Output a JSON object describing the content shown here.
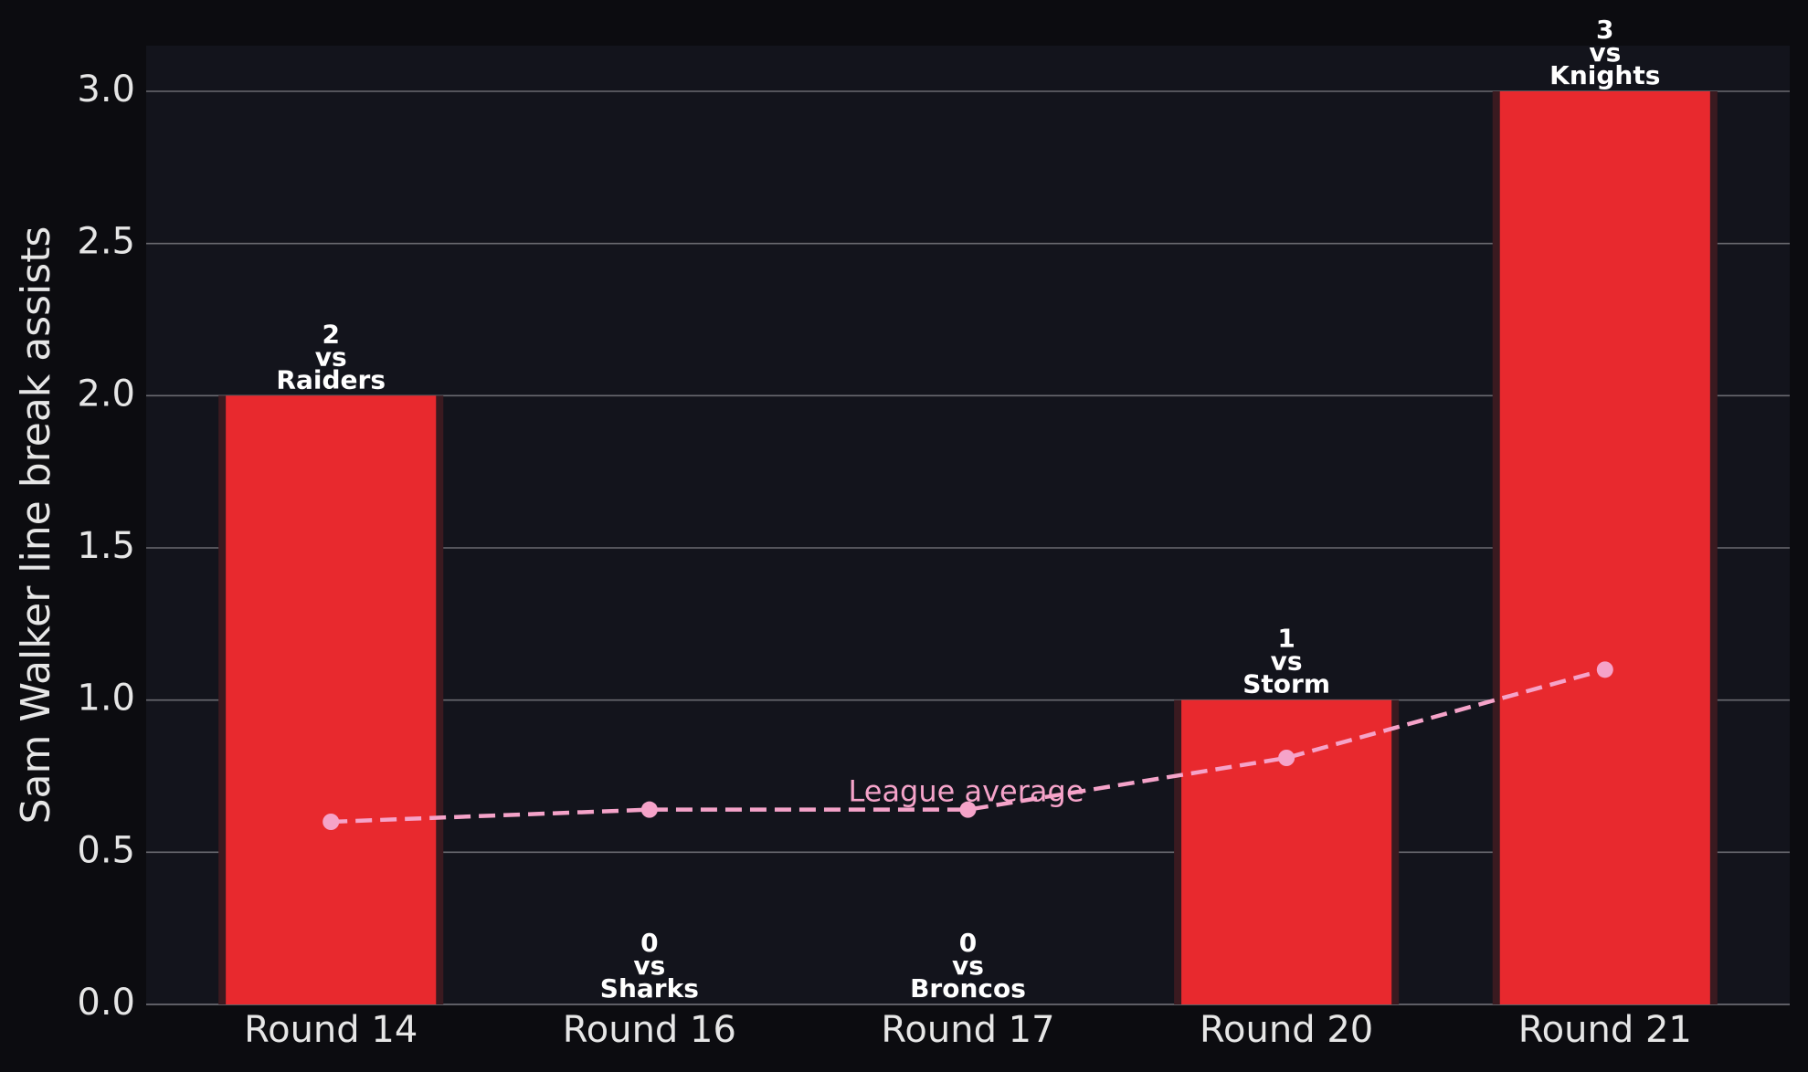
{
  "chart_data": {
    "type": "bar",
    "ylabel": "Sam Walker line break assists",
    "categories": [
      "Round 14",
      "Round 16",
      "Round 17",
      "Round 20",
      "Round 21"
    ],
    "values": [
      2,
      0,
      0,
      1,
      3
    ],
    "opponents": [
      "Raiders",
      "Sharks",
      "Broncos",
      "Storm",
      "Knights"
    ],
    "label_connector": "vs",
    "color": "#e8292e",
    "line_series": {
      "name": "League average",
      "color": "#f5a3c9",
      "values": [
        0.6,
        0.64,
        0.64,
        0.81,
        1.1
      ]
    },
    "ylim": [
      0,
      3.15
    ],
    "yticks": [
      {
        "value": 0,
        "label": "0.0"
      },
      0.5,
      {
        "value": 1,
        "label": "1.0"
      },
      1.5,
      {
        "value": 2,
        "label": "2.0"
      },
      2.5,
      {
        "value": 3,
        "label": "3.0"
      }
    ],
    "grid": true
  }
}
